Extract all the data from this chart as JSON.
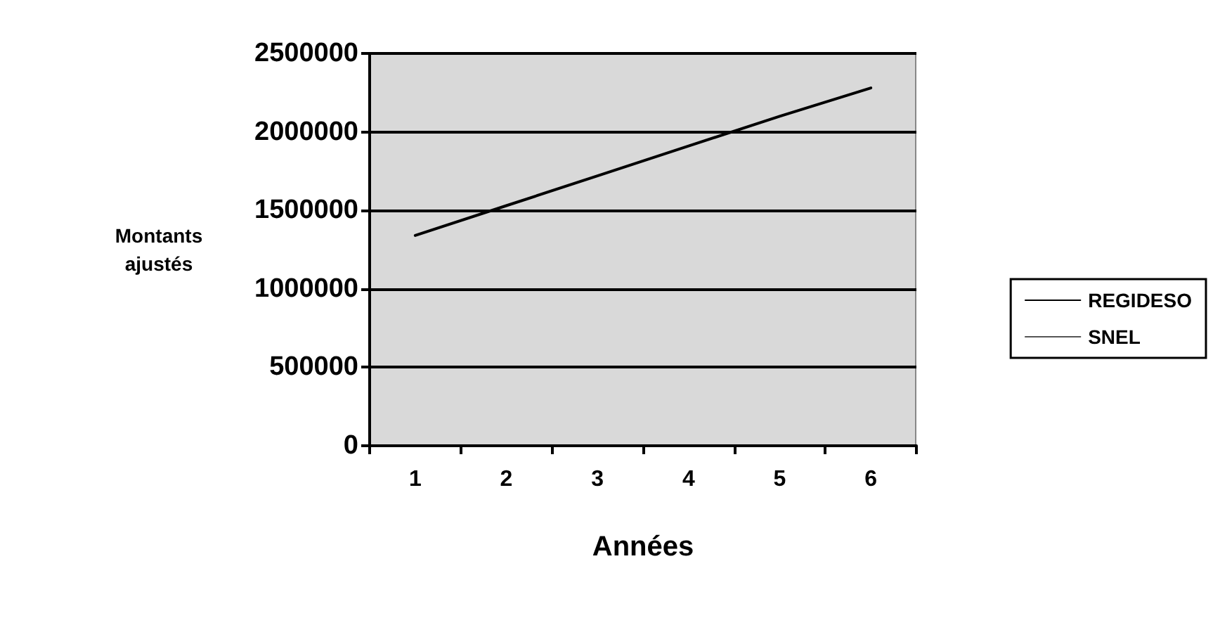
{
  "chart_data": {
    "type": "line",
    "xlabel": "Années",
    "ylabel": "Montants\najustés",
    "categories": [
      "1",
      "2",
      "3",
      "4",
      "5",
      "6"
    ],
    "series": [
      {
        "name": "REGIDESO",
        "color": "#000000",
        "line_style": "solid",
        "values": [
          1340000,
          1530000,
          1720000,
          1910000,
          2100000,
          2280000
        ]
      },
      {
        "name": "SNEL",
        "color": "#555555",
        "line_style": "dotted",
        "values": [
          null,
          null,
          null,
          null,
          null,
          null
        ]
      }
    ],
    "ylim": [
      0,
      2500000
    ],
    "yticks": [
      0,
      500000,
      1000000,
      1500000,
      2000000,
      2500000
    ],
    "grid": "y",
    "legend": "right",
    "marker": "none"
  }
}
